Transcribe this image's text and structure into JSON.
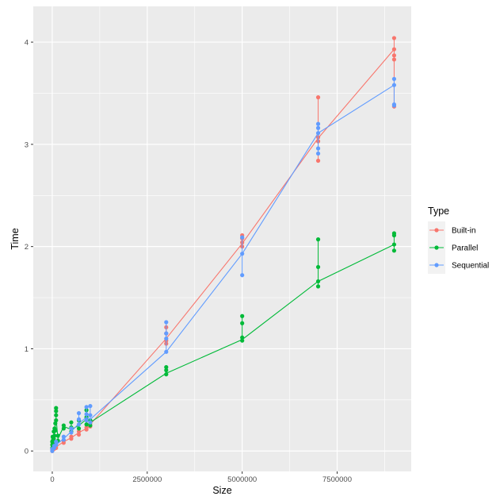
{
  "chart_data": {
    "type": "line",
    "xlabel": "Size",
    "ylabel": "Time",
    "xlim": [
      -500000,
      9450000
    ],
    "ylim": [
      -0.2,
      4.35
    ],
    "x_ticks": [
      0,
      2500000,
      5000000,
      7500000
    ],
    "x_tick_labels": [
      "0",
      "2500000",
      "5000000",
      "7500000"
    ],
    "y_ticks": [
      0,
      1,
      2,
      3,
      4
    ],
    "y_tick_labels": [
      "0",
      "1",
      "2",
      "3",
      "4"
    ],
    "grid": true,
    "legend_title": "Type",
    "legend_position": "right",
    "series": [
      {
        "name": "Built-in",
        "color": "#F8766D",
        "mean_line": {
          "x": [
            0,
            50000,
            100000,
            300000,
            500000,
            700000,
            900000,
            1000000,
            3000000,
            5000000,
            7000000,
            9000000
          ],
          "y": [
            0.0,
            0.02,
            0.04,
            0.09,
            0.13,
            0.18,
            0.22,
            0.26,
            1.1,
            2.03,
            3.06,
            3.93
          ]
        },
        "points": {
          "x": [
            0,
            0,
            0,
            50000,
            50000,
            100000,
            100000,
            300000,
            300000,
            500000,
            500000,
            700000,
            700000,
            900000,
            900000,
            1000000,
            1000000,
            3000000,
            3000000,
            3000000,
            3000000,
            5000000,
            5000000,
            5000000,
            5000000,
            7000000,
            7000000,
            7000000,
            7000000,
            9000000,
            9000000,
            9000000,
            9000000,
            9000000
          ],
          "y": [
            0.0,
            0.01,
            0.02,
            0.02,
            0.03,
            0.03,
            0.05,
            0.08,
            0.1,
            0.12,
            0.14,
            0.16,
            0.19,
            0.21,
            0.23,
            0.24,
            0.27,
            1.05,
            1.08,
            1.15,
            1.21,
            2.0,
            2.04,
            2.08,
            2.11,
            2.84,
            3.03,
            3.07,
            3.46,
            3.37,
            3.83,
            3.87,
            3.93,
            4.04
          ]
        }
      },
      {
        "name": "Parallel",
        "color": "#00BA38",
        "mean_line": {
          "x": [
            0,
            10000,
            20000,
            40000,
            60000,
            80000,
            100000,
            150000,
            300000,
            500000,
            700000,
            900000,
            1000000,
            3000000,
            5000000,
            7000000,
            9000000
          ],
          "y": [
            0.05,
            0.12,
            0.1,
            0.16,
            0.2,
            0.27,
            0.32,
            0.12,
            0.24,
            0.21,
            0.25,
            0.31,
            0.28,
            0.76,
            1.09,
            1.66,
            2.02
          ]
        },
        "points": {
          "x": [
            0,
            0,
            0,
            10000,
            10000,
            20000,
            20000,
            40000,
            40000,
            60000,
            60000,
            80000,
            80000,
            100000,
            100000,
            100000,
            100000,
            150000,
            150000,
            300000,
            300000,
            500000,
            500000,
            500000,
            700000,
            700000,
            900000,
            900000,
            900000,
            1000000,
            1000000,
            3000000,
            3000000,
            3000000,
            5000000,
            5000000,
            5000000,
            5000000,
            7000000,
            7000000,
            7000000,
            7000000,
            9000000,
            9000000,
            9000000,
            9000000
          ],
          "y": [
            0.03,
            0.06,
            0.09,
            0.1,
            0.14,
            0.08,
            0.13,
            0.12,
            0.19,
            0.15,
            0.22,
            0.2,
            0.27,
            0.3,
            0.35,
            0.39,
            0.42,
            0.1,
            0.15,
            0.22,
            0.25,
            0.19,
            0.23,
            0.28,
            0.22,
            0.3,
            0.26,
            0.33,
            0.4,
            0.25,
            0.3,
            0.75,
            0.79,
            0.82,
            1.08,
            1.11,
            1.25,
            1.32,
            1.61,
            1.66,
            1.8,
            2.07,
            1.96,
            2.02,
            2.11,
            2.13
          ]
        }
      },
      {
        "name": "Sequential",
        "color": "#619CFF",
        "mean_line": {
          "x": [
            0,
            50000,
            100000,
            300000,
            500000,
            700000,
            900000,
            1000000,
            3000000,
            5000000,
            7000000,
            9000000
          ],
          "y": [
            0.0,
            0.03,
            0.06,
            0.12,
            0.19,
            0.27,
            0.33,
            0.31,
            0.97,
            1.93,
            3.11,
            3.58
          ]
        },
        "points": {
          "x": [
            0,
            0,
            50000,
            50000,
            100000,
            100000,
            300000,
            300000,
            500000,
            500000,
            700000,
            700000,
            700000,
            900000,
            900000,
            900000,
            1000000,
            1000000,
            1000000,
            3000000,
            3000000,
            3000000,
            3000000,
            5000000,
            5000000,
            5000000,
            7000000,
            7000000,
            7000000,
            7000000,
            7000000,
            9000000,
            9000000,
            9000000,
            9000000
          ],
          "y": [
            0.0,
            0.02,
            0.03,
            0.05,
            0.06,
            0.09,
            0.11,
            0.14,
            0.18,
            0.22,
            0.26,
            0.31,
            0.37,
            0.3,
            0.36,
            0.43,
            0.28,
            0.35,
            0.44,
            0.97,
            1.1,
            1.15,
            1.26,
            1.72,
            1.93,
            2.09,
            2.91,
            2.96,
            3.11,
            3.16,
            3.2,
            3.38,
            3.39,
            3.58,
            3.64
          ]
        }
      }
    ]
  }
}
